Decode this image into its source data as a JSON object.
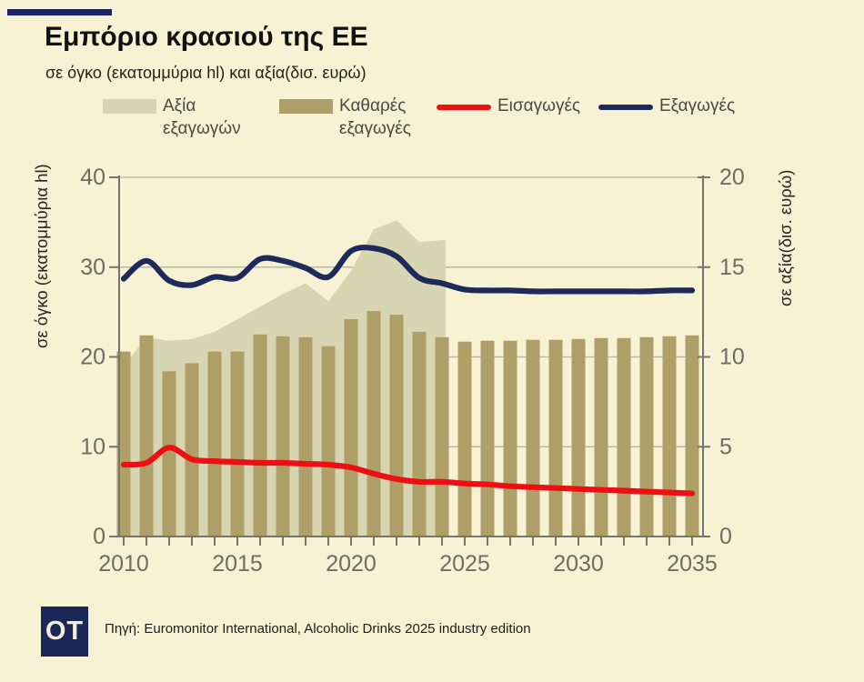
{
  "header": {
    "title": "Εμπόριο κρασιού της ΕΕ",
    "subtitle": "σε όγκο (εκατομμύρια hl) και αξία(δισ. ευρώ)"
  },
  "legend": {
    "items": [
      {
        "label": "Αξία εξαγωγών",
        "type": "area",
        "color": "#d8d5b2"
      },
      {
        "label": "Καθαρές εξαγωγές",
        "type": "bar",
        "color": "#ae9f68"
      },
      {
        "label": "Εισαγωγές",
        "type": "line",
        "color": "#ee0f12"
      },
      {
        "label": "Εξαγωγές",
        "type": "line",
        "color": "#1e2a5a"
      }
    ]
  },
  "chart_data": {
    "type": "combo",
    "x": [
      2010,
      2011,
      2012,
      2013,
      2014,
      2015,
      2016,
      2017,
      2018,
      2019,
      2020,
      2021,
      2022,
      2023,
      2024,
      2025,
      2026,
      2027,
      2028,
      2029,
      2030,
      2031,
      2032,
      2033,
      2034,
      2035
    ],
    "x_labeled_ticks": [
      2010,
      2015,
      2020,
      2025,
      2030,
      2035
    ],
    "left_axis": {
      "label": "σε όγκο (εκατομμύρια hl)",
      "range": [
        0,
        40
      ],
      "ticks": [
        0,
        10,
        20,
        30,
        40
      ]
    },
    "right_axis": {
      "label": "σε αξία(δισ. ευρώ)",
      "range": [
        0,
        20
      ],
      "ticks": [
        0,
        5,
        10,
        15,
        20
      ]
    },
    "grid": true,
    "series": [
      {
        "name": "Αξία εξαγωγών",
        "type": "area",
        "axis": "right",
        "color": "#d8d5b2",
        "x": [
          2010,
          2011,
          2012,
          2013,
          2014,
          2015,
          2016,
          2017,
          2018,
          2019,
          2020,
          2021,
          2022,
          2023,
          2024
        ],
        "values": [
          9.5,
          11.1,
          10.9,
          11.0,
          11.4,
          12.1,
          12.8,
          13.5,
          14.1,
          13.1,
          14.8,
          17.1,
          17.6,
          16.4,
          16.5
        ]
      },
      {
        "name": "Καθαρές εξαγωγές",
        "type": "bar",
        "axis": "left",
        "color": "#ae9f68",
        "values": [
          20.6,
          22.4,
          18.4,
          19.3,
          20.6,
          20.6,
          22.5,
          22.3,
          22.2,
          21.2,
          24.2,
          25.1,
          24.7,
          22.8,
          22.2,
          21.7,
          21.8,
          21.8,
          21.9,
          21.9,
          22.0,
          22.1,
          22.1,
          22.2,
          22.3,
          22.4
        ]
      },
      {
        "name": "Εισαγωγές",
        "type": "line",
        "axis": "left",
        "color": "#ee0f12",
        "values": [
          8.0,
          8.2,
          9.9,
          8.6,
          8.4,
          8.3,
          8.2,
          8.2,
          8.1,
          8.0,
          7.7,
          7.0,
          6.4,
          6.1,
          6.1,
          5.9,
          5.8,
          5.6,
          5.5,
          5.4,
          5.3,
          5.2,
          5.1,
          5.0,
          4.9,
          4.8
        ]
      },
      {
        "name": "Εξαγωγές",
        "type": "line",
        "axis": "left",
        "color": "#1e2a5a",
        "values": [
          28.7,
          30.7,
          28.5,
          28.0,
          28.9,
          28.8,
          30.9,
          30.7,
          29.9,
          28.9,
          31.8,
          32.1,
          31.2,
          28.8,
          28.2,
          27.5,
          27.4,
          27.4,
          27.3,
          27.3,
          27.3,
          27.3,
          27.3,
          27.3,
          27.4,
          27.4
        ]
      }
    ],
    "colors": {
      "background": "#f7f2d4",
      "gridline": "#b7b3a4",
      "axis": "#76756b",
      "tick_text": "#6e6d64",
      "axis_title_text": "#26261f"
    }
  },
  "footer": {
    "logo_text": "OT",
    "source": "Πηγή: Euromonitor International, Alcoholic Drinks 2025 industry edition"
  }
}
